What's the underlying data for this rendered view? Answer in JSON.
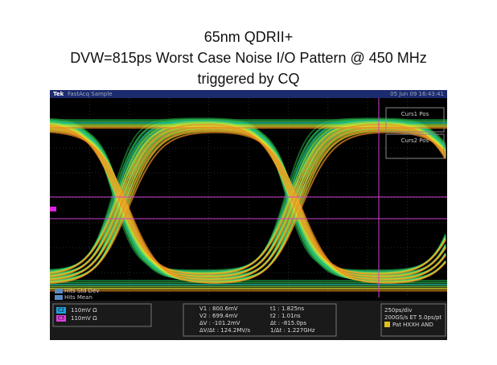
{
  "slide": {
    "title_lines": [
      "65nm QDRII+",
      "DVW=815ps Worst Case Noise I/O Pattern @ 450 MHz",
      "triggered by CQ"
    ]
  },
  "scope": {
    "header": {
      "brand": "Tek",
      "mode": "FastAcq Sample",
      "timestamp": "05 Jun 09 16:43:41"
    },
    "cursor_labels": [
      "Curs1 Pos",
      "Curs2 Pos"
    ],
    "stats": [
      "Hits Std Dev",
      "Hits Mean"
    ],
    "channels": [
      "110mV Ω",
      "110mV Ω"
    ],
    "channel_ids": [
      "C2",
      "C3"
    ],
    "cursor_readouts": [
      "V1 : 800.6mV",
      "V2 : 699.4mV",
      "ΔV : -101.2mV",
      "ΔV/Δt : 124.2MV/s",
      "t1 : 1.825ns",
      "t2 : 1.01ns",
      "Δt : -815.0ps",
      "1/Δt : 1.227GHz"
    ],
    "timebase": [
      "250ps/div",
      "200GS/s ET 5.0ps/pt",
      "Pat HXXH AND"
    ]
  }
}
